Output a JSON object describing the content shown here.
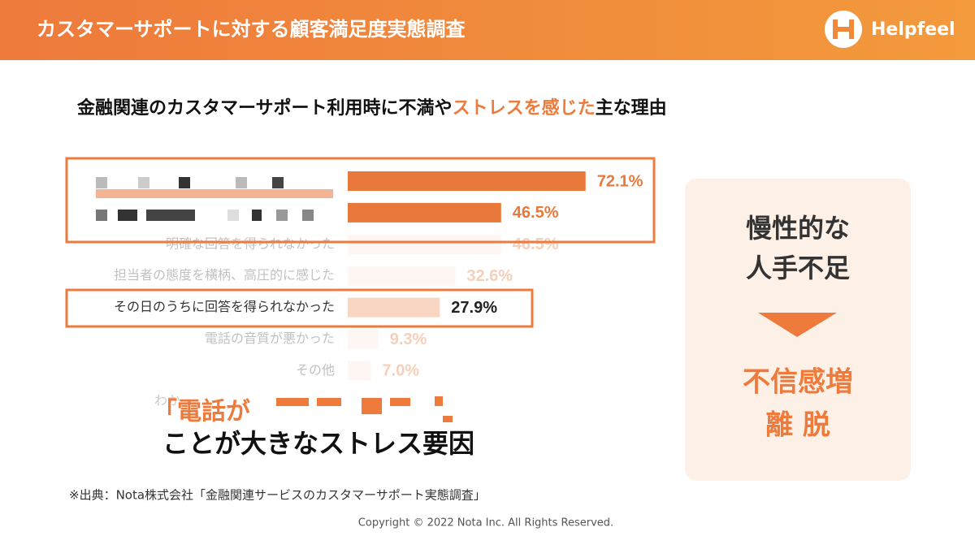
{
  "header": {
    "title": "カスタマーサポートに対する顧客満足度実態調査",
    "logo": "Helpfeel"
  },
  "chart_data": {
    "type": "bar",
    "title": [
      "金融関連のカスタマーサポート利用時に不満や",
      "ストレスを感じた",
      "主な理由"
    ],
    "categories": [
      null,
      null,
      "明確な回答を得られなかった",
      "担当者の態度を横柄、高圧的に感じた",
      "その日のうちに回答を得られなかった",
      "電話の音質が悪かった",
      "その他"
    ],
    "values": [
      72.1,
      46.5,
      46.5,
      32.6,
      27.9,
      9.3,
      7.0
    ],
    "value_labels": [
      "72.1%",
      "46.5%",
      "46.5%",
      "32.6%",
      "27.9%",
      "9.3%",
      "7.0%"
    ],
    "colors": [
      "#e8793a",
      "#e8793a",
      "#fbe6da",
      "#fbe6da",
      "#f8d6c3",
      "#fbe6da",
      "#fbe6da"
    ]
  },
  "overlay_fragment": "わか",
  "quote": {
    "line1": "「電話が",
    "line2": "ことが大きなストレス要因"
  },
  "card": {
    "top": [
      "慢性的な",
      "人手不足"
    ],
    "bottom": [
      "不信感増",
      "離 脱"
    ]
  },
  "source": "※出典：Nota株式会社「金融関連サービスのカスタマーサポート実態調査」",
  "copyright": "Copyright © 2022 Nota Inc. All Rights Reserved."
}
